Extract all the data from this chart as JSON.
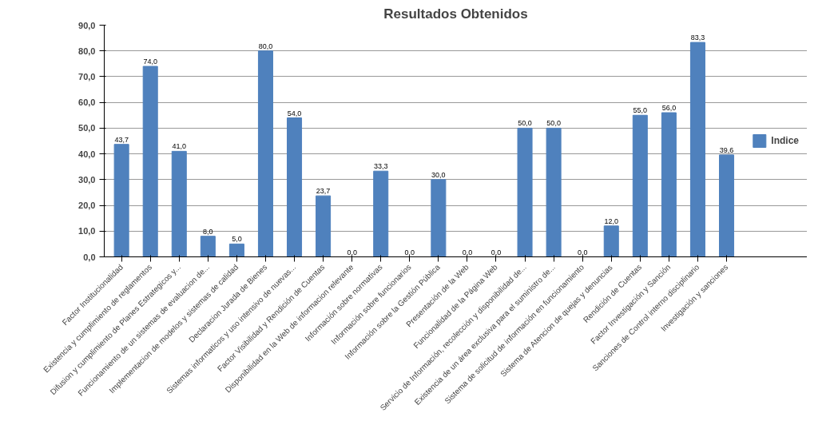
{
  "chart_data": {
    "type": "bar",
    "title": "Resultados Obtenidos",
    "categories": [
      "Factor Institucionalidad",
      "Existencia y cumplimiento de reglamentos",
      "Difusion y cumplimiento de Planes Estrategicos y...",
      "Funcionamiento de un sistemas de evaluacion de...",
      "Implementacion de modelos y sistemas de calidad",
      "Declaracion Jurada de Bienes",
      "Sistemas informaticos y uso intensivo de nuevas...",
      "Factor Visibilidad y Rendición de Cuentas",
      "Disponibilidad en la Web de informacion relevante",
      "Información sobre normativas",
      "Información sobre funcionarios",
      "Información sobre la Gestión Pública",
      "Presentación de la Web",
      "Funcionalidad de la Página Web",
      "Servicio de Información, recolección y disponibilidad de...",
      "Existencia de un área exclusiva para el suministro de...",
      "Sistema de solicitud de información en funcionamiento",
      "Sistema de Atencion de quejas y denuncias",
      "Rendición de Cuentas",
      "Factor Investigación y Sanción",
      "Sanciones de Control interno disciplinario",
      "Investigación y sanciones"
    ],
    "series": [
      {
        "name": "Indice",
        "color": "#4f81bd",
        "values": [
          43.7,
          74.0,
          41.0,
          8.0,
          5.0,
          80.0,
          54.0,
          23.7,
          0.0,
          33.3,
          0.0,
          30.0,
          0.0,
          0.0,
          50.0,
          50.0,
          0.0,
          12.0,
          55.0,
          56.0,
          83.3,
          39.6
        ],
        "value_labels": [
          "43,7",
          "74,0",
          "41,0",
          "8,0",
          "5,0",
          "80,0",
          "54,0",
          "23,7",
          "0,0",
          "33,3",
          "0,0",
          "30,0",
          "0,0",
          "0,0",
          "50,0",
          "50,0",
          "0,0",
          "12,0",
          "55,0",
          "56,0",
          "83,3",
          "39,6"
        ]
      }
    ],
    "ylim": [
      0,
      90
    ],
    "yticks": [
      {
        "value": 0,
        "label": "0,0"
      },
      {
        "value": 10,
        "label": "10,0"
      },
      {
        "value": 20,
        "label": "20,0"
      },
      {
        "value": 30,
        "label": "30,0"
      },
      {
        "value": 40,
        "label": "40,0"
      },
      {
        "value": 50,
        "label": "50,0"
      },
      {
        "value": 60,
        "label": "60,0"
      },
      {
        "value": 70,
        "label": "70,0"
      },
      {
        "value": 80,
        "label": "80,0"
      },
      {
        "value": 90,
        "label": "90,0"
      }
    ],
    "grid": "y",
    "legend": "right"
  }
}
